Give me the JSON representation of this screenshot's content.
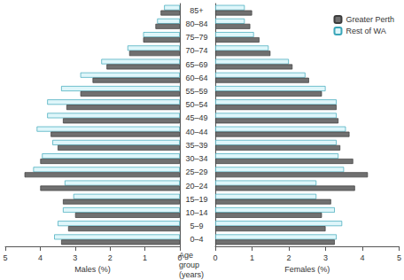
{
  "chart_data": [
    {
      "type": "bar",
      "orientation": "horizontal",
      "xlabel": "Males (%)",
      "ylabel": "Age group (years)",
      "tick_labels": "x",
      "categories": [
        "0–4",
        "5–9",
        "10–14",
        "15–19",
        "20–24",
        "25–29",
        "30–34",
        "35–39",
        "40–44",
        "45–49",
        "50–54",
        "55–59",
        "60–64",
        "65–69",
        "70–74",
        "75–79",
        "80–84",
        "85+"
      ],
      "series": [
        {
          "name": "Greater Perth",
          "color": "#707070",
          "values": [
            3.4,
            3.2,
            3.0,
            3.35,
            4.0,
            4.45,
            4.0,
            3.5,
            3.7,
            3.35,
            3.25,
            2.85,
            2.5,
            2.1,
            1.45,
            1.05,
            0.7,
            0.55
          ]
        },
        {
          "name": "Rest of WA",
          "color": "#dff6fa",
          "values": [
            3.6,
            3.5,
            3.35,
            3.05,
            3.3,
            4.2,
            3.95,
            3.65,
            4.1,
            3.8,
            3.8,
            3.4,
            2.85,
            2.25,
            1.5,
            1.05,
            0.65,
            0.45
          ]
        }
      ],
      "xlim": [
        5,
        0
      ],
      "xticks": [
        5,
        4,
        3,
        2,
        1,
        0
      ],
      "grid": false
    },
    {
      "type": "bar",
      "orientation": "horizontal",
      "xlabel": "Females (%)",
      "legend": "upper right",
      "categories": [
        "0–4",
        "5–9",
        "10–14",
        "15–19",
        "20–24",
        "25–29",
        "30–34",
        "35–39",
        "40–44",
        "45–49",
        "50–54",
        "55–59",
        "60–64",
        "65–69",
        "70–74",
        "75–79",
        "80–84",
        "85+"
      ],
      "series": [
        {
          "name": "Greater Perth",
          "color": "#707070",
          "values": [
            3.25,
            3.0,
            2.9,
            3.15,
            3.8,
            4.15,
            3.75,
            3.4,
            3.65,
            3.35,
            3.3,
            2.9,
            2.55,
            2.1,
            1.5,
            1.2,
            0.95,
            1.0
          ]
        },
        {
          "name": "Rest of WA",
          "color": "#dff6fa",
          "values": [
            3.3,
            3.45,
            3.25,
            2.75,
            2.75,
            3.5,
            3.35,
            3.3,
            3.55,
            3.3,
            3.3,
            3.0,
            2.45,
            2.0,
            1.45,
            1.05,
            0.8,
            0.8
          ]
        }
      ],
      "xlim": [
        0,
        5
      ],
      "xticks": [
        0,
        1,
        2,
        3,
        4,
        5
      ],
      "grid": false
    }
  ]
}
